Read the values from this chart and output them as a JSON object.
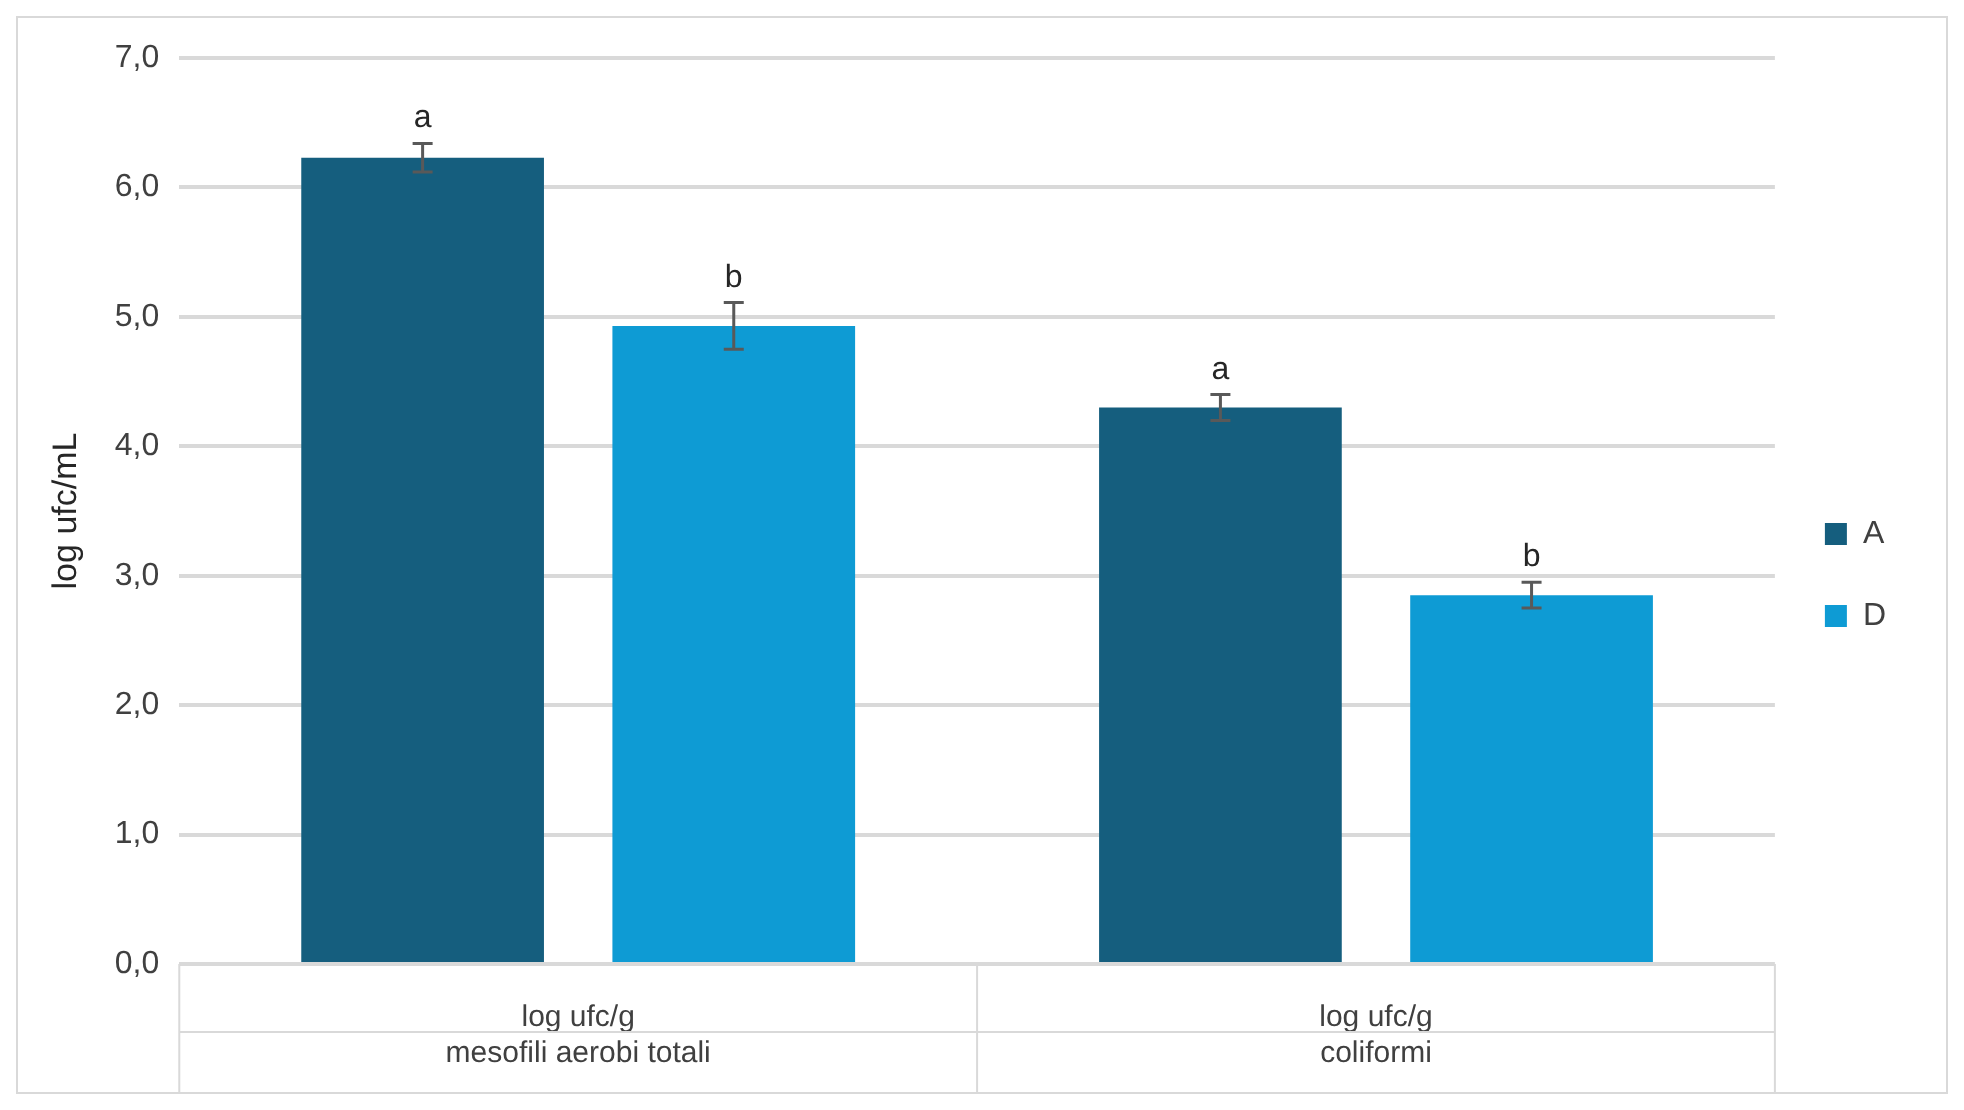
{
  "chart_data": {
    "type": "bar",
    "ylabel": "log ufc/mL",
    "categories": [
      "log ufc/g\nmesofili aerobi totali",
      "log ufc/g\ncoliformi"
    ],
    "series": [
      {
        "name": "A",
        "color": "#155e7e",
        "values": [
          6.23,
          4.3
        ],
        "errors": [
          0.11,
          0.1
        ]
      },
      {
        "name": "D",
        "color": "#0e9bd4",
        "values": [
          4.93,
          2.85
        ],
        "errors": [
          0.18,
          0.1
        ]
      }
    ],
    "ylim": [
      0,
      7
    ],
    "yticks": [
      {
        "value": 0,
        "label": "0,0"
      },
      {
        "value": 1,
        "label": "1,0"
      },
      {
        "value": 2,
        "label": "2,0"
      },
      {
        "value": 3,
        "label": "3,0"
      },
      {
        "value": 4,
        "label": "4,0"
      },
      {
        "value": 5,
        "label": "5,0"
      },
      {
        "value": 6,
        "label": "6,0"
      },
      {
        "value": 7,
        "label": "7,0"
      }
    ],
    "grid": "y",
    "legend": "right",
    "annotations": [
      "a",
      "b",
      "a",
      "b"
    ]
  }
}
